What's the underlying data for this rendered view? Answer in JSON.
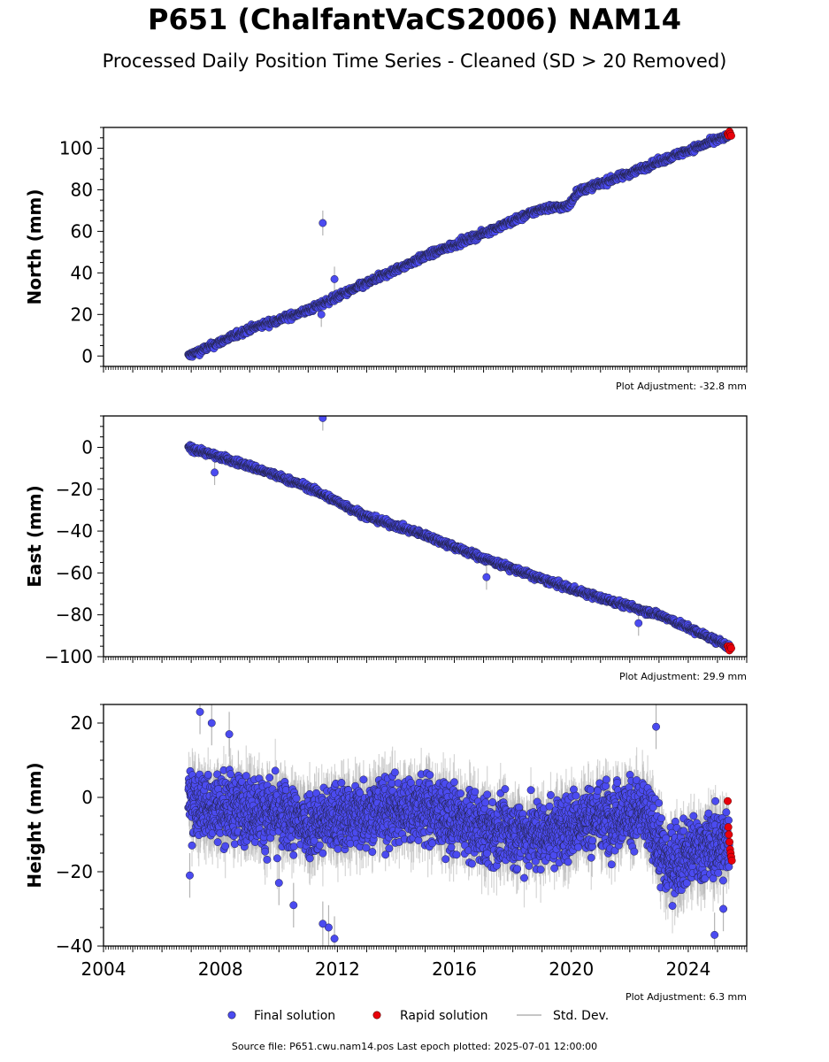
{
  "title": "P651 (ChalfantVaCS2006) NAM14",
  "subtitle": "Processed Daily Position Time Series - Cleaned (SD > 20 Removed)",
  "source_note": "Source file: P651.cwu.nam14.pos  Last epoch plotted: 2025-07-01 12:00:00",
  "colors": {
    "final": "#4b4bf0",
    "rapid": "#e8000b",
    "stddev": "#b4b4b4",
    "edge": "#222244"
  },
  "legend": {
    "final": "Final solution",
    "rapid": "Rapid solution",
    "stddev": "Std. Dev."
  },
  "chart_data": [
    {
      "type": "scatter",
      "ylabel": "North (mm)",
      "adjustment": "Plot Adjustment: -32.8 mm",
      "xlim": [
        2004.0,
        2026.0
      ],
      "ylim": [
        -5,
        110
      ],
      "yticks": [
        0,
        20,
        40,
        60,
        80,
        100
      ],
      "series": [
        {
          "name": "Final solution",
          "trend": [
            [
              2006.9,
              0
            ],
            [
              2009.0,
              13
            ],
            [
              2011.0,
              22
            ],
            [
              2013.0,
              35
            ],
            [
              2015.0,
              48
            ],
            [
              2017.0,
              59
            ],
            [
              2019.0,
              71
            ],
            [
              2019.9,
              72
            ],
            [
              2020.2,
              79
            ],
            [
              2022.0,
              88
            ],
            [
              2024.0,
              99
            ],
            [
              2025.4,
              106
            ]
          ],
          "scatter": 1.6
        },
        {
          "name": "Rapid solution",
          "x": [
            2025.35,
            2025.38,
            2025.41,
            2025.44,
            2025.47
          ],
          "y": [
            107,
            106,
            108,
            107,
            106
          ]
        }
      ],
      "outliers": [
        [
          2011.5,
          64
        ],
        [
          2011.45,
          20
        ],
        [
          2011.9,
          37
        ]
      ]
    },
    {
      "type": "scatter",
      "ylabel": "East (mm)",
      "adjustment": "Plot Adjustment: 29.9 mm",
      "xlim": [
        2004.0,
        2026.0
      ],
      "ylim": [
        -100,
        15
      ],
      "yticks": [
        -100,
        -80,
        -60,
        -40,
        -20,
        0
      ],
      "series": [
        {
          "name": "Final solution",
          "trend": [
            [
              2006.9,
              0
            ],
            [
              2009.0,
              -9
            ],
            [
              2011.0,
              -19
            ],
            [
              2013.0,
              -33
            ],
            [
              2015.0,
              -42
            ],
            [
              2017.0,
              -53
            ],
            [
              2019.0,
              -63
            ],
            [
              2021.0,
              -72
            ],
            [
              2023.0,
              -80
            ],
            [
              2025.4,
              -95
            ]
          ],
          "scatter": 1.5
        },
        {
          "name": "Rapid solution",
          "x": [
            2025.35,
            2025.38,
            2025.41,
            2025.44,
            2025.47
          ],
          "y": [
            -95,
            -96,
            -97,
            -95,
            -96
          ]
        }
      ],
      "outliers": [
        [
          2011.5,
          14
        ],
        [
          2007.8,
          -12
        ],
        [
          2017.1,
          -62
        ],
        [
          2022.3,
          -84
        ]
      ]
    },
    {
      "type": "scatter",
      "ylabel": "Height (mm)",
      "adjustment": "Plot Adjustment: 6.3 mm",
      "xlim": [
        2004.0,
        2026.0
      ],
      "ylim": [
        -40,
        25
      ],
      "yticks": [
        -40,
        -20,
        0,
        20
      ],
      "xticks": [
        2004,
        2008,
        2012,
        2016,
        2020,
        2024
      ],
      "series": [
        {
          "name": "Final solution",
          "trend": [
            [
              2006.9,
              -2
            ],
            [
              2009.0,
              -3
            ],
            [
              2011.0,
              -7
            ],
            [
              2013.0,
              -4
            ],
            [
              2015.0,
              -3
            ],
            [
              2017.0,
              -9
            ],
            [
              2019.0,
              -10
            ],
            [
              2021.0,
              -5
            ],
            [
              2022.5,
              -4
            ],
            [
              2023.3,
              -18
            ],
            [
              2024.0,
              -15
            ],
            [
              2025.4,
              -12
            ]
          ],
          "scatter": 7
        },
        {
          "name": "Rapid solution",
          "x": [
            2025.35,
            2025.37,
            2025.39,
            2025.41,
            2025.43,
            2025.45,
            2025.47,
            2025.49
          ],
          "y": [
            -1,
            -8,
            -10,
            -12,
            -14,
            -15,
            -16,
            -17
          ]
        }
      ],
      "outliers": [
        [
          2007.3,
          23
        ],
        [
          2007.7,
          20
        ],
        [
          2008.3,
          17
        ],
        [
          2022.9,
          19
        ],
        [
          2010.0,
          -23
        ],
        [
          2010.5,
          -29
        ],
        [
          2011.7,
          -35
        ],
        [
          2011.9,
          -38
        ],
        [
          2011.5,
          -34
        ],
        [
          2024.9,
          -37
        ],
        [
          2025.2,
          -30
        ],
        [
          2006.95,
          -21
        ]
      ]
    }
  ]
}
